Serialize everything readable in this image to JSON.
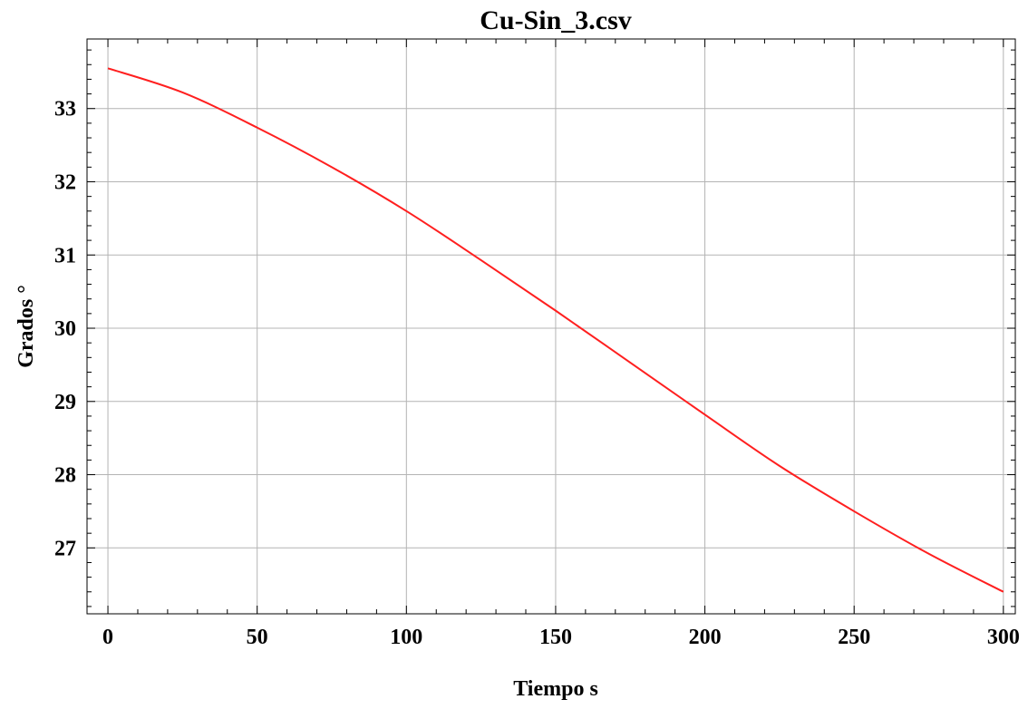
{
  "chart_data": {
    "type": "line",
    "title": "Cu-Sin_3.csv",
    "xlabel": "Tiempo s",
    "ylabel": "Grados °",
    "xlim": [
      -7,
      304
    ],
    "ylim": [
      26.1,
      33.95
    ],
    "x_ticks": [
      0,
      50,
      100,
      150,
      200,
      250,
      300
    ],
    "y_ticks": [
      27,
      28,
      29,
      30,
      31,
      32,
      33
    ],
    "grid": true,
    "colors": {
      "line": "#ff1f1f",
      "grid": "#b4b4b4",
      "frame": "#000000"
    },
    "series": [
      {
        "color": "#ff1f1f",
        "x": [
          0,
          25,
          50,
          75,
          100,
          125,
          150,
          175,
          200,
          225,
          250,
          275,
          300
        ],
        "y": [
          33.55,
          33.22,
          32.74,
          32.2,
          31.6,
          30.93,
          30.24,
          29.53,
          28.82,
          28.12,
          27.5,
          26.92,
          26.4
        ]
      }
    ]
  }
}
